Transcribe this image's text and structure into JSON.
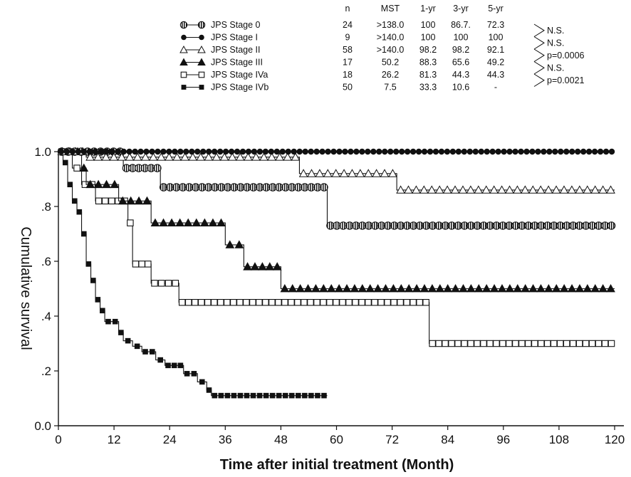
{
  "chart_data": {
    "type": "line",
    "subtype": "kaplan-meier-step",
    "title": "",
    "xlabel": "Time after initial treatment (Month)",
    "ylabel": "Cumulative survival",
    "xlim": [
      0,
      120
    ],
    "ylim": [
      0,
      1
    ],
    "xticks": [
      0,
      12,
      24,
      36,
      48,
      60,
      72,
      84,
      96,
      108,
      120
    ],
    "xtick_labels": [
      "0",
      "12",
      "24",
      "36",
      "48",
      "60",
      "72",
      "84",
      "96",
      "108",
      "120"
    ],
    "yticks": [
      0,
      0.2,
      0.4,
      0.6,
      0.8,
      1.0
    ],
    "ytick_labels": [
      "0.0",
      ".2",
      ".4",
      ".6",
      ".8",
      "1.0"
    ],
    "grid": false,
    "legend_position": "top",
    "legend_table": {
      "headers": [
        "n",
        "MST",
        "1-yr",
        "3-yr",
        "5-yr"
      ],
      "rows": [
        {
          "label": "JPS Stage 0",
          "marker": "circle-open",
          "cells": [
            "24",
            ">138.0",
            "100",
            "86.7.",
            "72.3"
          ]
        },
        {
          "label": "JPS Stage I",
          "marker": "circle-filled",
          "cells": [
            "9",
            ">140.0",
            "100",
            "100",
            "100"
          ]
        },
        {
          "label": "JPS Stage II",
          "marker": "triangle-open",
          "cells": [
            "58",
            ">140.0",
            "98.2",
            "98.2",
            "92.1"
          ]
        },
        {
          "label": "JPS Stage III",
          "marker": "triangle-filled",
          "cells": [
            "17",
            "50.2",
            "88.3",
            "65.6",
            "49.2"
          ]
        },
        {
          "label": "JPS Stage IVa",
          "marker": "square-open",
          "cells": [
            "18",
            "26.2",
            "81.3",
            "44.3",
            "44.3"
          ]
        },
        {
          "label": "JPS Stage IVb",
          "marker": "square-filled",
          "cells": [
            "50",
            "7.5",
            "33.3",
            "10.6",
            "-"
          ]
        }
      ]
    },
    "comparisons": [
      "N.S.",
      "N.S.",
      "p=0.0006",
      "N.S.",
      "p=0.0021"
    ],
    "series": [
      {
        "name": "JPS Stage 0",
        "marker": "circle-open",
        "end_x": 120,
        "steps": [
          [
            0,
            1.0
          ],
          [
            14,
            0.94
          ],
          [
            22,
            0.87
          ],
          [
            58,
            0.73
          ]
        ]
      },
      {
        "name": "JPS Stage I",
        "marker": "circle-filled",
        "end_x": 120,
        "steps": [
          [
            0,
            1.0
          ]
        ]
      },
      {
        "name": "JPS Stage II",
        "marker": "triangle-open",
        "end_x": 120,
        "steps": [
          [
            0,
            1.0
          ],
          [
            6,
            0.98
          ],
          [
            52,
            0.92
          ],
          [
            73,
            0.86
          ]
        ]
      },
      {
        "name": "JPS Stage III",
        "marker": "triangle-filled",
        "end_x": 120,
        "steps": [
          [
            0,
            1.0
          ],
          [
            5,
            0.94
          ],
          [
            6,
            0.88
          ],
          [
            13,
            0.82
          ],
          [
            20,
            0.74
          ],
          [
            36,
            0.66
          ],
          [
            40,
            0.58
          ],
          [
            48,
            0.5
          ]
        ]
      },
      {
        "name": "JPS Stage IVa",
        "marker": "square-open",
        "end_x": 120,
        "steps": [
          [
            0,
            1.0
          ],
          [
            3,
            0.94
          ],
          [
            5,
            0.88
          ],
          [
            8,
            0.82
          ],
          [
            15,
            0.74
          ],
          [
            16,
            0.59
          ],
          [
            20,
            0.52
          ],
          [
            26,
            0.45
          ],
          [
            80,
            0.3
          ]
        ]
      },
      {
        "name": "JPS Stage IVb",
        "marker": "square-filled",
        "end_x": 58,
        "steps": [
          [
            0,
            1.0
          ],
          [
            1,
            0.96
          ],
          [
            2,
            0.88
          ],
          [
            3,
            0.82
          ],
          [
            4,
            0.78
          ],
          [
            5,
            0.7
          ],
          [
            6,
            0.59
          ],
          [
            7,
            0.53
          ],
          [
            8,
            0.46
          ],
          [
            9,
            0.42
          ],
          [
            10,
            0.38
          ],
          [
            13,
            0.34
          ],
          [
            14,
            0.31
          ],
          [
            16,
            0.29
          ],
          [
            18,
            0.27
          ],
          [
            21,
            0.24
          ],
          [
            23,
            0.22
          ],
          [
            27,
            0.19
          ],
          [
            30,
            0.16
          ],
          [
            32,
            0.13
          ],
          [
            33,
            0.11
          ]
        ]
      }
    ]
  }
}
